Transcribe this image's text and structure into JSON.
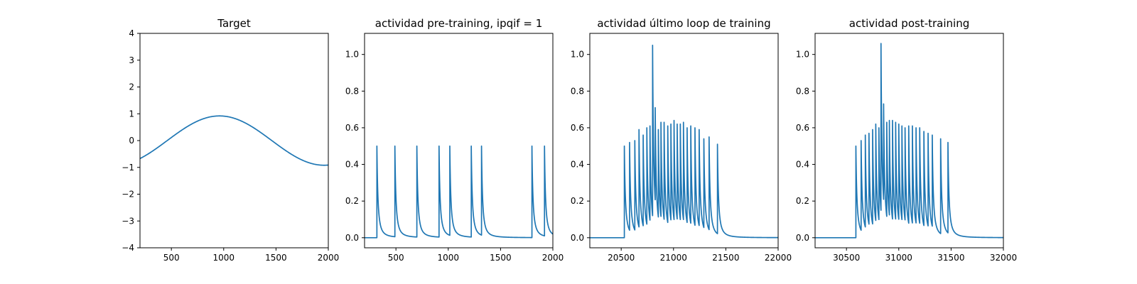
{
  "chart_data": [
    {
      "type": "line",
      "title": "Target",
      "xlim": [
        200,
        2000
      ],
      "ylim": [
        -4,
        4
      ],
      "xticks": [
        500,
        1000,
        1500,
        2000
      ],
      "yticks": [
        -4,
        -3,
        -2,
        -1,
        0,
        1,
        2,
        3,
        4
      ],
      "xtick_labels": [
        "500",
        "1000",
        "1500",
        "2000"
      ],
      "ytick_labels": [
        "−4",
        "−3",
        "−2",
        "−1",
        "0",
        "1",
        "2",
        "3",
        "4"
      ],
      "signal": {
        "kind": "sine",
        "amplitude": 0.92,
        "period": 2000,
        "peak_x": 960
      },
      "color": "#1f77b4"
    },
    {
      "type": "line",
      "title": "actividad pre-training, ipqif = 1",
      "xlim": [
        200,
        2000
      ],
      "ylim": [
        -0.055,
        1.115
      ],
      "xticks": [
        500,
        1000,
        1500,
        2000
      ],
      "yticks": [
        0.0,
        0.2,
        0.4,
        0.6,
        0.8,
        1.0
      ],
      "xtick_labels": [
        "500",
        "1000",
        "1500",
        "2000"
      ],
      "ytick_labels": [
        "0.0",
        "0.2",
        "0.4",
        "0.6",
        "0.8",
        "1.0"
      ],
      "decay": 20,
      "spikes": [
        {
          "x": 318,
          "y": 0.5
        },
        {
          "x": 490,
          "y": 0.5
        },
        {
          "x": 700,
          "y": 0.5
        },
        {
          "x": 912,
          "y": 0.5
        },
        {
          "x": 1015,
          "y": 0.5
        },
        {
          "x": 1220,
          "y": 0.5
        },
        {
          "x": 1318,
          "y": 0.5
        },
        {
          "x": 1800,
          "y": 0.5
        },
        {
          "x": 1920,
          "y": 0.5
        }
      ],
      "color": "#1f77b4"
    },
    {
      "type": "line",
      "title": "actividad último loop de training",
      "xlim": [
        20200,
        22000
      ],
      "ylim": [
        -0.055,
        1.115
      ],
      "xticks": [
        20500,
        21000,
        21500,
        22000
      ],
      "yticks": [
        0.0,
        0.2,
        0.4,
        0.6,
        0.8,
        1.0
      ],
      "xtick_labels": [
        "20500",
        "21000",
        "21500",
        "22000"
      ],
      "ytick_labels": [
        "0.0",
        "0.2",
        "0.4",
        "0.6",
        "0.8",
        "1.0"
      ],
      "decay": 20,
      "spikes": [
        {
          "x": 20530,
          "y": 0.5
        },
        {
          "x": 20580,
          "y": 0.52
        },
        {
          "x": 20630,
          "y": 0.53
        },
        {
          "x": 20670,
          "y": 0.59
        },
        {
          "x": 20710,
          "y": 0.56
        },
        {
          "x": 20745,
          "y": 0.6
        },
        {
          "x": 20775,
          "y": 0.61
        },
        {
          "x": 20800,
          "y": 1.05
        },
        {
          "x": 20825,
          "y": 0.71
        },
        {
          "x": 20855,
          "y": 0.59
        },
        {
          "x": 20880,
          "y": 0.63
        },
        {
          "x": 20910,
          "y": 0.63
        },
        {
          "x": 20945,
          "y": 0.61
        },
        {
          "x": 20975,
          "y": 0.62
        },
        {
          "x": 21005,
          "y": 0.64
        },
        {
          "x": 21035,
          "y": 0.62
        },
        {
          "x": 21065,
          "y": 0.62
        },
        {
          "x": 21095,
          "y": 0.63
        },
        {
          "x": 21130,
          "y": 0.6
        },
        {
          "x": 21165,
          "y": 0.61
        },
        {
          "x": 21205,
          "y": 0.6
        },
        {
          "x": 21245,
          "y": 0.59
        },
        {
          "x": 21290,
          "y": 0.54
        },
        {
          "x": 21340,
          "y": 0.55
        },
        {
          "x": 21420,
          "y": 0.51
        }
      ],
      "color": "#1f77b4"
    },
    {
      "type": "line",
      "title": "actividad post-training",
      "xlim": [
        30200,
        32000
      ],
      "ylim": [
        -0.055,
        1.115
      ],
      "xticks": [
        30500,
        31000,
        31500,
        32000
      ],
      "yticks": [
        0.0,
        0.2,
        0.4,
        0.6,
        0.8,
        1.0
      ],
      "xtick_labels": [
        "30500",
        "31000",
        "31500",
        "32000"
      ],
      "ytick_labels": [
        "0.0",
        "0.2",
        "0.4",
        "0.6",
        "0.8",
        "1.0"
      ],
      "decay": 20,
      "spikes": [
        {
          "x": 30590,
          "y": 0.5
        },
        {
          "x": 30640,
          "y": 0.53
        },
        {
          "x": 30680,
          "y": 0.56
        },
        {
          "x": 30715,
          "y": 0.57
        },
        {
          "x": 30750,
          "y": 0.59
        },
        {
          "x": 30780,
          "y": 0.62
        },
        {
          "x": 30810,
          "y": 0.6
        },
        {
          "x": 30830,
          "y": 1.06
        },
        {
          "x": 30855,
          "y": 0.73
        },
        {
          "x": 30885,
          "y": 0.63
        },
        {
          "x": 30910,
          "y": 0.64
        },
        {
          "x": 30940,
          "y": 0.64
        },
        {
          "x": 30970,
          "y": 0.63
        },
        {
          "x": 31000,
          "y": 0.62
        },
        {
          "x": 31030,
          "y": 0.61
        },
        {
          "x": 31060,
          "y": 0.6
        },
        {
          "x": 31095,
          "y": 0.61
        },
        {
          "x": 31130,
          "y": 0.61
        },
        {
          "x": 31165,
          "y": 0.6
        },
        {
          "x": 31200,
          "y": 0.6
        },
        {
          "x": 31240,
          "y": 0.58
        },
        {
          "x": 31280,
          "y": 0.57
        },
        {
          "x": 31320,
          "y": 0.56
        },
        {
          "x": 31400,
          "y": 0.54
        },
        {
          "x": 31470,
          "y": 0.52
        }
      ],
      "color": "#1f77b4"
    }
  ]
}
